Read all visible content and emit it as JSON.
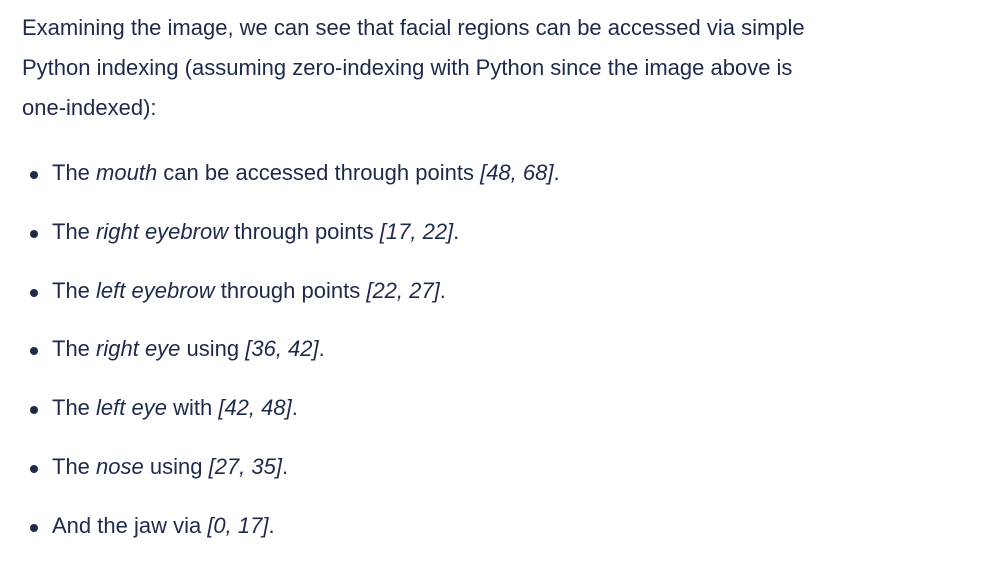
{
  "intro": "Examining the image, we can see that facial regions can be accessed via simple Python indexing (assuming zero-indexing with Python since the image above is one-indexed):",
  "intro_lines": [
    "Examining the image, we can see that facial regions can be accessed via simple",
    "Python indexing (assuming zero-indexing with Python since the image above is",
    "one-indexed):"
  ],
  "items": [
    {
      "pre": "The ",
      "em": "mouth",
      "mid": " can be accessed through points ",
      "range": "[48, 68]",
      "post": "."
    },
    {
      "pre": "The ",
      "em": "right eyebrow",
      "mid": " through points ",
      "range": "[17, 22]",
      "post": "."
    },
    {
      "pre": "The ",
      "em": "left eyebrow",
      "mid": " through points ",
      "range": "[22, 27]",
      "post": "."
    },
    {
      "pre": "The ",
      "em": "right eye",
      "mid": " using ",
      "range": "[36, 42]",
      "post": "."
    },
    {
      "pre": "The ",
      "em": "left eye",
      "mid": " with ",
      "range": "[42, 48]",
      "post": "."
    },
    {
      "pre": "The ",
      "em": "nose",
      "mid": " using ",
      "range": "[27, 35]",
      "post": "."
    },
    {
      "pre": "And the jaw via ",
      "em": "",
      "mid": "",
      "range": "[0, 17]",
      "post": "."
    }
  ]
}
